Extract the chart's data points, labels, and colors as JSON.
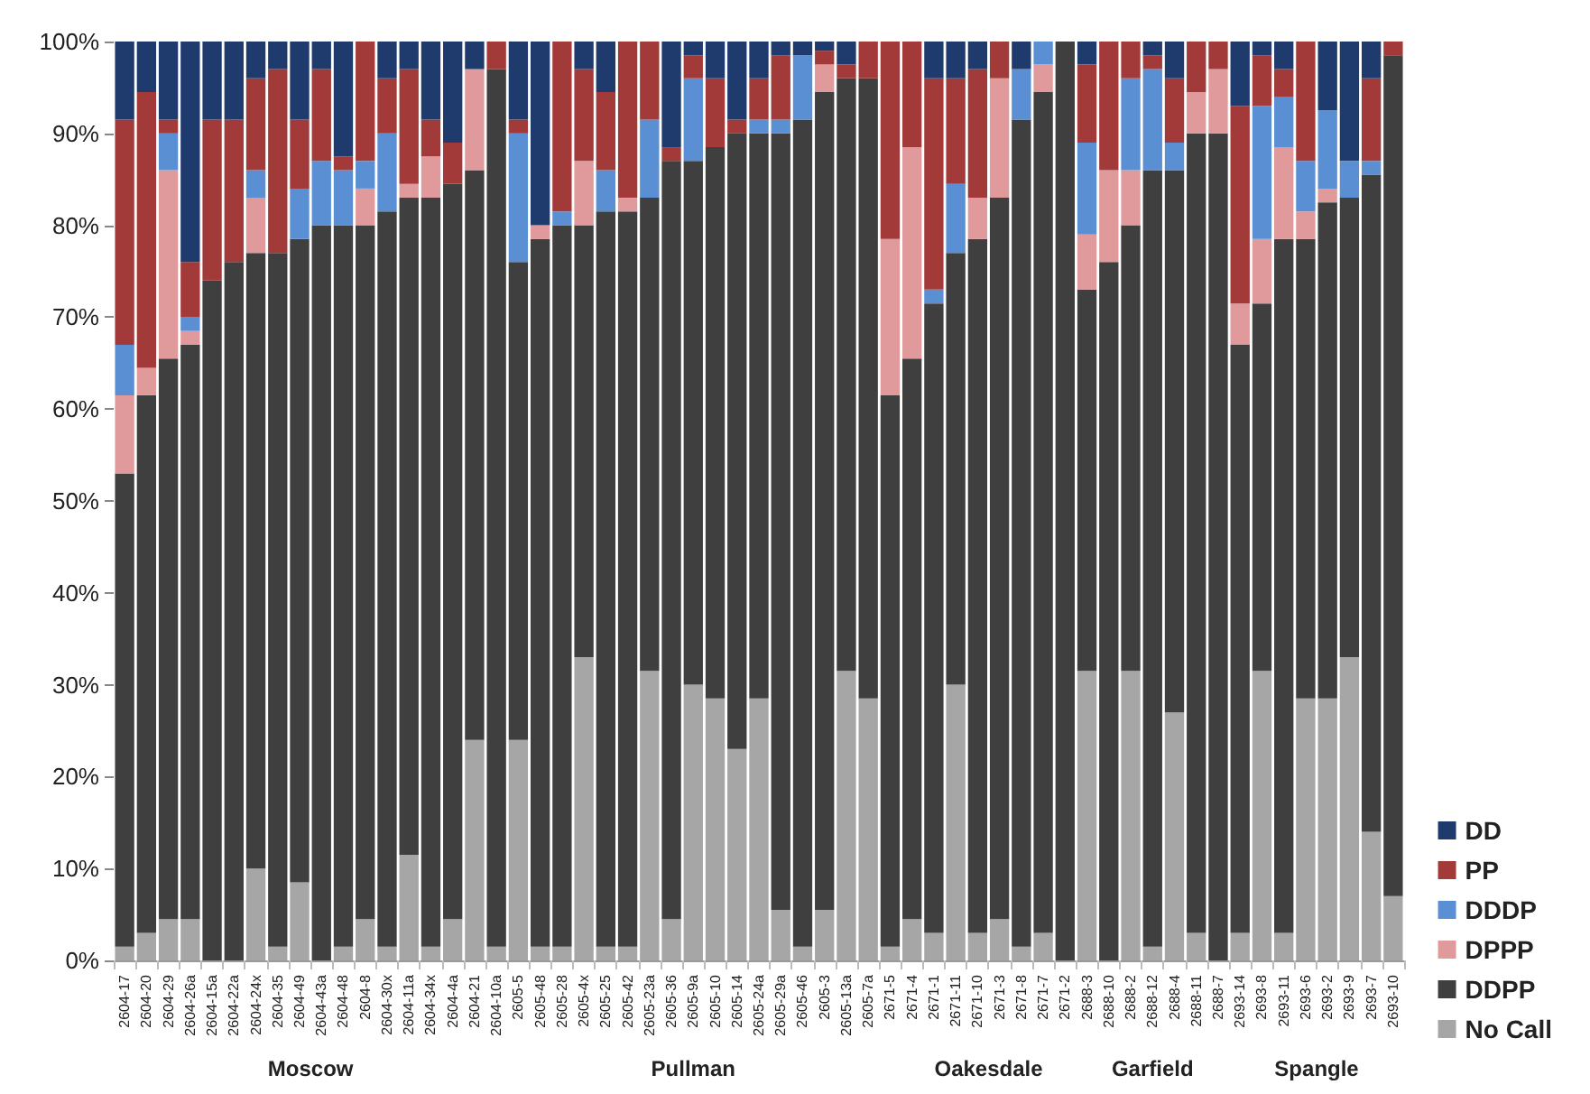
{
  "chart_data": {
    "type": "bar",
    "stacked": true,
    "categories": [
      "2604-17",
      "2604-20",
      "2604-29",
      "2604-26a",
      "2604-15a",
      "2604-22a",
      "2604-24x",
      "2604-35",
      "2604-49",
      "2604-43a",
      "2604-48",
      "2604-8",
      "2604-30x",
      "2604-11a",
      "2604-34x",
      "2604-4a",
      "2604-21",
      "2604-10a",
      "2605-5",
      "2605-48",
      "2605-28",
      "2605-4x",
      "2605-25",
      "2605-42",
      "2605-23a",
      "2605-36",
      "2605-9a",
      "2605-10",
      "2605-14",
      "2605-24a",
      "2605-29a",
      "2605-46",
      "2605-3",
      "2605-13a",
      "2605-7a",
      "2671-5",
      "2671-4",
      "2671-1",
      "2671-11",
      "2671-10",
      "2671-3",
      "2671-8",
      "2671-7",
      "2671-2",
      "2688-3",
      "2688-10",
      "2688-2",
      "2688-12",
      "2688-4",
      "2688-11",
      "2688-7",
      "2693-14",
      "2693-8",
      "2693-11",
      "2693-6",
      "2693-2",
      "2693-9",
      "2693-7",
      "2693-10"
    ],
    "series": [
      {
        "name": "No Call",
        "color": "#a6a6a6",
        "values": [
          1.5,
          3,
          4.5,
          4.5,
          0,
          0,
          10,
          1.5,
          8.5,
          0,
          1.5,
          4.5,
          1.5,
          11.5,
          1.5,
          4.5,
          24,
          1.5,
          24,
          1.5,
          1.5,
          33,
          1.5,
          1.5,
          31.5,
          4.5,
          30,
          28.5,
          23,
          28.5,
          5.5,
          1.5,
          5.5,
          31.5,
          28.5,
          1.5,
          4.5,
          3,
          30,
          3,
          4.5,
          1.5,
          3,
          0,
          31.5,
          0,
          31.5,
          1.5,
          27,
          3,
          0,
          3,
          31.5,
          3,
          28.5,
          28.5,
          33,
          14,
          7
        ]
      },
      {
        "name": "DDPP",
        "color": "#3f3f3f",
        "values": [
          51.5,
          58.5,
          61,
          62.5,
          74,
          76,
          67,
          75.5,
          70,
          80,
          78.5,
          75.5,
          80,
          71.5,
          81.5,
          80,
          62,
          95.5,
          52,
          77,
          78.5,
          47,
          80,
          80,
          51.5,
          82.5,
          57,
          60,
          67,
          61.5,
          84.5,
          90,
          89,
          64.5,
          67.5,
          60,
          61,
          68.5,
          47,
          75.5,
          78.5,
          90,
          91.5,
          100,
          41.5,
          76,
          48.5,
          84.5,
          59,
          87,
          90,
          64,
          40,
          75.5,
          50,
          54,
          50,
          71.5,
          91.5
        ]
      },
      {
        "name": "DPPP",
        "color": "#e09a9b",
        "values": [
          8.5,
          3,
          20.5,
          1.5,
          0,
          0,
          6,
          0,
          0,
          0,
          0,
          4,
          0,
          1.5,
          4.5,
          0,
          11,
          0,
          0,
          1.5,
          0,
          7,
          0,
          1.5,
          0,
          0,
          0,
          0,
          0,
          0,
          0,
          0,
          3,
          0,
          0,
          17,
          23,
          0,
          0,
          4.5,
          13,
          0,
          3,
          0,
          6,
          10,
          6,
          0,
          0,
          4.5,
          7,
          4.5,
          7,
          10,
          3,
          1.5,
          0,
          0,
          0
        ]
      },
      {
        "name": "DDDP",
        "color": "#5b8fd4",
        "values": [
          5.5,
          0,
          4,
          1.5,
          0,
          0,
          3,
          0,
          5.5,
          7,
          6,
          3,
          8.5,
          0,
          0,
          0,
          0,
          0,
          14,
          0,
          1.5,
          0,
          4.5,
          0,
          8.5,
          0,
          9,
          0,
          0,
          1.5,
          1.5,
          7,
          0,
          0,
          0,
          0,
          0,
          1.5,
          7.5,
          0,
          0,
          5.5,
          2.5,
          0,
          10,
          0,
          10,
          11,
          3,
          0,
          0,
          0,
          14.5,
          5.5,
          5.5,
          8.5,
          4,
          1.5,
          0
        ]
      },
      {
        "name": "PP",
        "color": "#a33a3a",
        "values": [
          24.5,
          30,
          1.5,
          6,
          17.5,
          15.5,
          10,
          20,
          7.5,
          10,
          1.5,
          13,
          6,
          12.5,
          4,
          4.5,
          0,
          3,
          1.5,
          0,
          18.5,
          10,
          8.5,
          17,
          8.5,
          1.5,
          2.5,
          7.5,
          1.5,
          4.5,
          7,
          0,
          1.5,
          1.5,
          4,
          21.5,
          11.5,
          23,
          11.5,
          14,
          4,
          0,
          0,
          0,
          8.5,
          14,
          4,
          1.5,
          7,
          5.5,
          3,
          21.5,
          5.5,
          3,
          13,
          0,
          0,
          9,
          1.5
        ]
      },
      {
        "name": "DD",
        "color": "#1f3b6e",
        "values": [
          8.5,
          5.5,
          8.5,
          24,
          8.5,
          8.5,
          4,
          3,
          8.5,
          3,
          12.5,
          0,
          4,
          3,
          8.5,
          11,
          3,
          0,
          8.5,
          20,
          0,
          3,
          5.5,
          0,
          0,
          11.5,
          1.5,
          4,
          8.5,
          4,
          1.5,
          1.5,
          1,
          2.5,
          0,
          0,
          0,
          4,
          4,
          3,
          0,
          3,
          0,
          0,
          2.5,
          0,
          0,
          1.5,
          4,
          0,
          0,
          7,
          1.5,
          3,
          0,
          7.5,
          13,
          4,
          0
        ]
      }
    ],
    "ylim": [
      0,
      100
    ],
    "yticks": [
      {
        "value": 0,
        "label": "0%"
      },
      {
        "value": 10,
        "label": "10%"
      },
      {
        "value": 20,
        "label": "20%"
      },
      {
        "value": 30,
        "label": "30%"
      },
      {
        "value": 40,
        "label": "40%"
      },
      {
        "value": 50,
        "label": "50%"
      },
      {
        "value": 60,
        "label": "60%"
      },
      {
        "value": 70,
        "label": "70%"
      },
      {
        "value": 80,
        "label": "80%"
      },
      {
        "value": 90,
        "label": "90%"
      },
      {
        "value": 100,
        "label": "100%"
      }
    ],
    "legend": "right",
    "annotations": [
      "Moscow",
      "Pullman",
      "Oakesdale",
      "Garfield",
      "Spangle"
    ]
  }
}
